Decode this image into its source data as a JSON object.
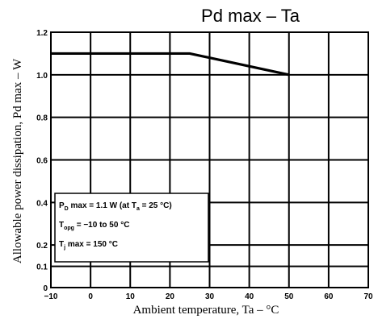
{
  "chart_data": {
    "type": "line",
    "title": "Pd max  –  Ta",
    "xlabel": "Ambient temperature, Ta  –  °C",
    "ylabel": "Allowable power dissipation, Pd max  –  W",
    "xlim": [
      -10,
      70
    ],
    "ylim": [
      0,
      1.2
    ],
    "x_ticks": [
      -10,
      0,
      10,
      20,
      30,
      40,
      50,
      60,
      70
    ],
    "x_tick_labels": [
      "−10",
      "0",
      "10",
      "20",
      "30",
      "40",
      "50",
      "60",
      "70"
    ],
    "y_ticks": [
      0,
      0.1,
      0.2,
      0.4,
      0.6,
      0.8,
      1.0,
      1.2
    ],
    "y_tick_labels": [
      "0",
      "0.1",
      "0.2",
      "0.4",
      "0.6",
      "0.8",
      "1.0",
      "1.2"
    ],
    "grid": true,
    "series": [
      {
        "x": [
          -10,
          25,
          50
        ],
        "y": [
          1.1,
          1.1,
          1.0
        ]
      }
    ],
    "annotation": {
      "pd_prefix": "P",
      "pd_sub": "D",
      "pd_text": " max = 1.1 W (at T",
      "pd_sub2": "a",
      "pd_end": " = 25 °C)",
      "topg_prefix": "T",
      "topg_sub": "opg",
      "topg_text": " = −10 to 50 °C",
      "tj_prefix": "T",
      "tj_sub": "j",
      "tj_text": " max = 150 °C"
    }
  }
}
